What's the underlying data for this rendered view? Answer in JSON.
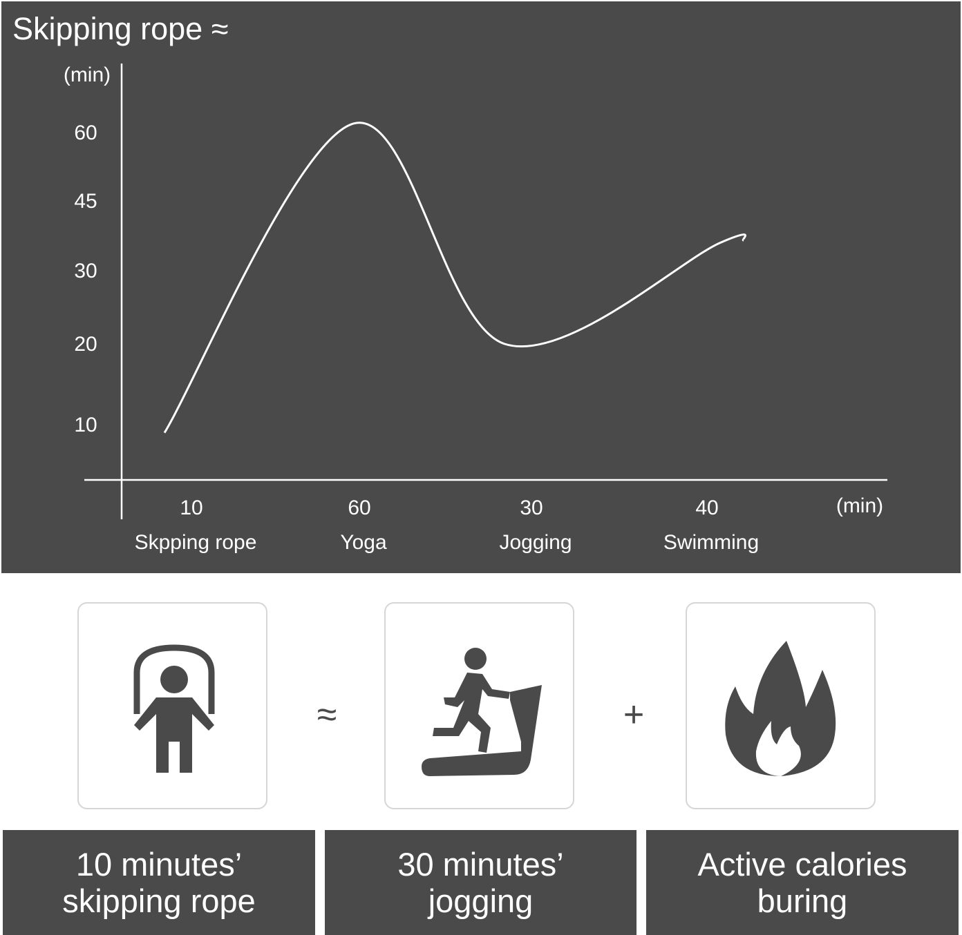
{
  "title": "Skipping rope ≈",
  "chart_data": {
    "type": "line",
    "title": "Skipping rope ≈",
    "ylabel": "(min)",
    "xlabel": "(min)",
    "yticks": [
      10,
      20,
      30,
      45,
      60
    ],
    "x_values": [
      "10",
      "60",
      "30",
      "40"
    ],
    "categories": [
      "Skpping rope",
      "Yoga",
      "Jogging",
      "Swimming"
    ],
    "values": [
      9,
      62,
      20,
      36
    ],
    "grid": false,
    "line_color": "#ffffff",
    "background": "#4a4a4a"
  },
  "equation": {
    "approx_symbol": "≈",
    "plus_symbol": "+",
    "items": [
      {
        "icon": "skipping-rope-icon",
        "line1": "10 minutes’",
        "line2": "skipping rope"
      },
      {
        "icon": "treadmill-runner-icon",
        "line1": "30 minutes’",
        "line2": "jogging"
      },
      {
        "icon": "fire-icon",
        "line1": "Active calories",
        "line2": "buring"
      }
    ]
  },
  "colors": {
    "dark": "#4a4a4a",
    "card_border": "#d6d6d6",
    "icon": "#4a4a4a"
  }
}
